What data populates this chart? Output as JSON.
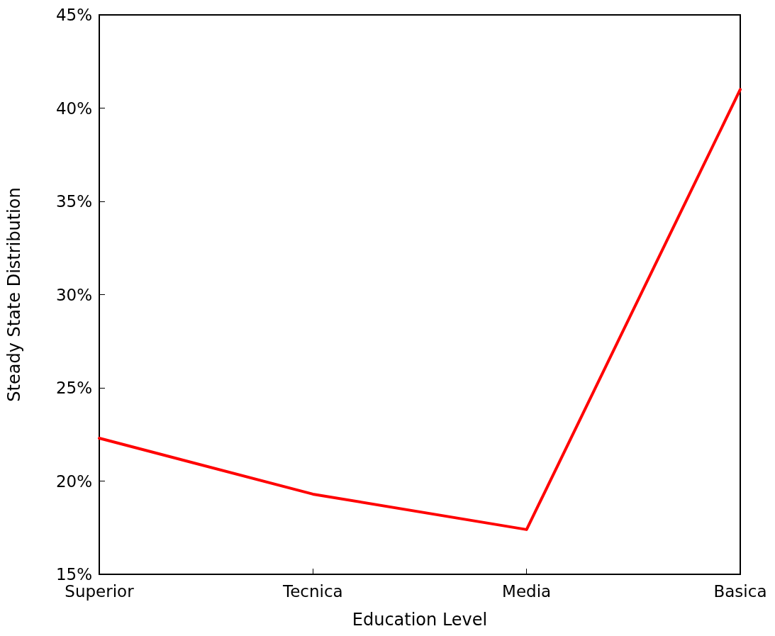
{
  "chart_data": {
    "type": "line",
    "xlabel": "Education Level",
    "ylabel": "Steady State Distribution",
    "categories": [
      "Superior",
      "Tecnica",
      "Media",
      "Basica"
    ],
    "series": [
      {
        "color": "#ff0000",
        "values": [
          22.3,
          19.3,
          17.4,
          41.0
        ]
      }
    ],
    "ylim": [
      15,
      45
    ],
    "yticks": [
      {
        "value": 15,
        "label": "15%"
      },
      {
        "value": 20,
        "label": "20%"
      },
      {
        "value": 25,
        "label": "25%"
      },
      {
        "value": 30,
        "label": "30%"
      },
      {
        "value": 35,
        "label": "35%"
      },
      {
        "value": 40,
        "label": "40%"
      },
      {
        "value": 45,
        "label": "45%"
      }
    ],
    "grid": false,
    "marker": "none",
    "line_style": "solid"
  }
}
